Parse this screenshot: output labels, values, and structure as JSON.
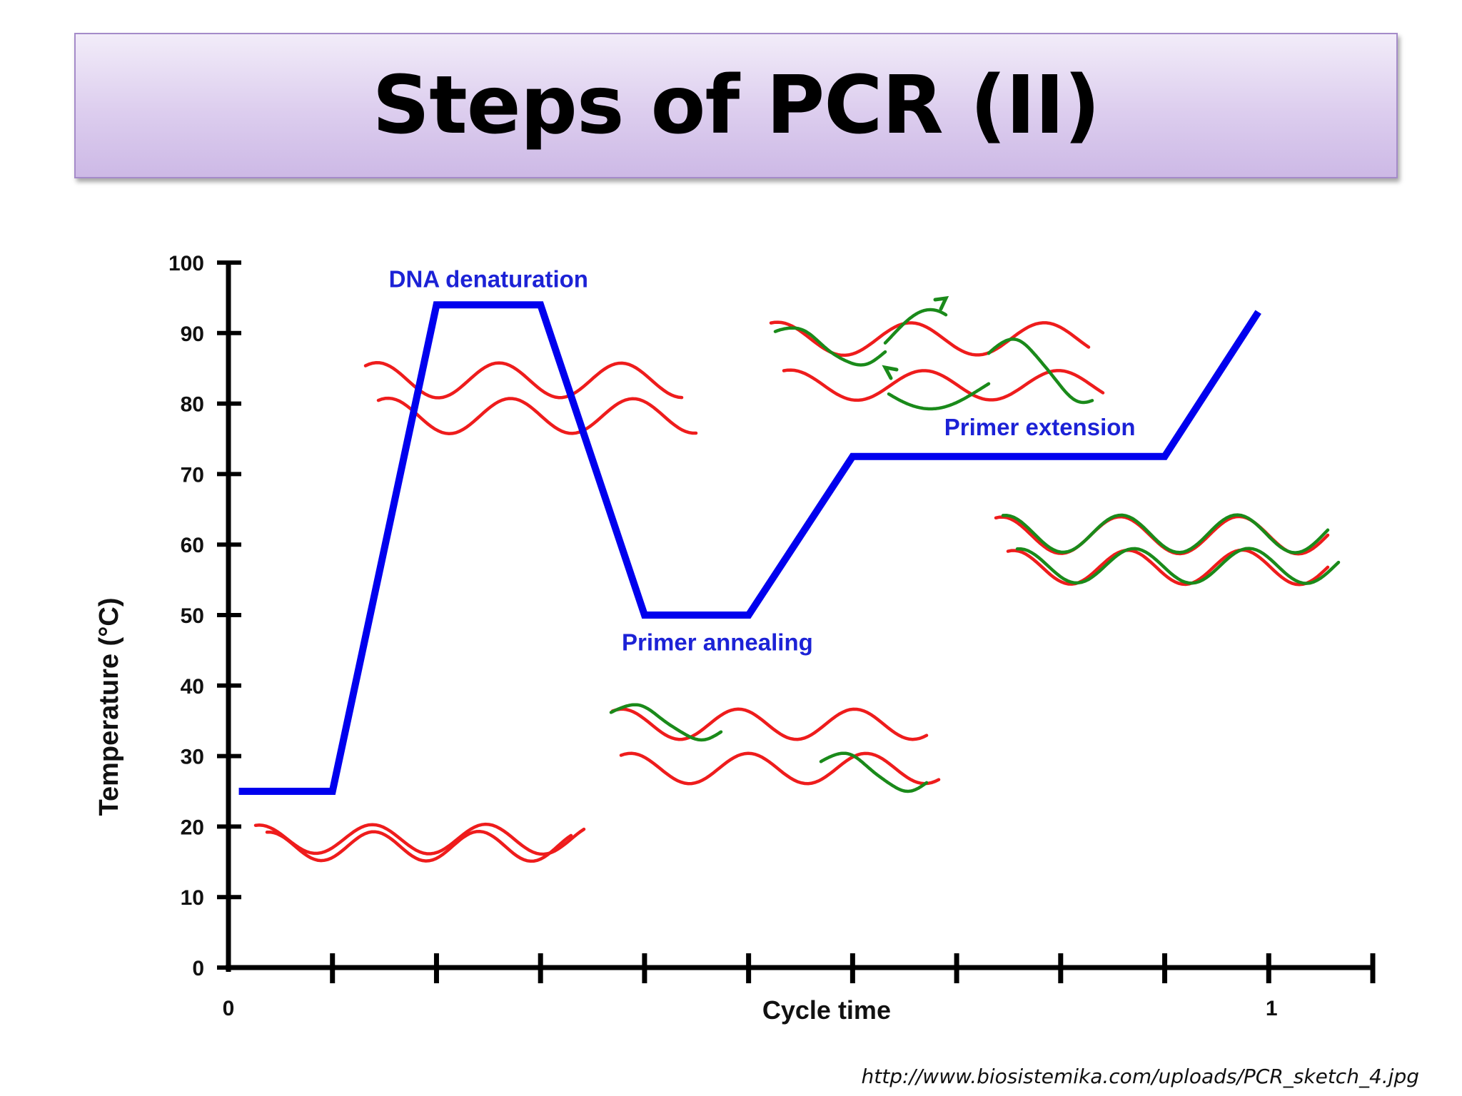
{
  "slide": {
    "title": "Steps of PCR (II)",
    "source": "http://www.biosistemika.com/uploads/PCR_sketch_4.jpg"
  },
  "colors": {
    "curve": "#0000ee",
    "phase_label": "#1c22d6",
    "dna_strand": "#ee1c1c",
    "primer": "#1a8a1a",
    "axis": "#000000"
  },
  "chart_data": {
    "type": "line",
    "ylabel": "Temperature (°C)",
    "xlabel": "Cycle time",
    "ylim": [
      0,
      100
    ],
    "y_ticks": [
      0,
      10,
      20,
      30,
      40,
      50,
      60,
      70,
      80,
      90,
      100
    ],
    "y_tick_labels": [
      "0",
      "10",
      "20",
      "30",
      "40",
      "50",
      "60",
      "70",
      "80",
      "90",
      "100"
    ],
    "xlim": [
      0,
      1.1
    ],
    "x_ticks": [
      0,
      0.1,
      0.2,
      0.3,
      0.4,
      0.5,
      0.6,
      0.7,
      0.8,
      0.9,
      1.0,
      1.1
    ],
    "x_tick_labels": [
      {
        "x": 0,
        "label": "0"
      },
      {
        "x": 1.0,
        "label": "1"
      }
    ],
    "grid": false,
    "series": [
      {
        "x": [
          0.01,
          0.1,
          0.2,
          0.3,
          0.4,
          0.5,
          0.6,
          0.9,
          0.99
        ],
        "y": [
          25,
          25,
          94,
          94,
          50,
          50,
          72.5,
          72.5,
          93
        ]
      }
    ],
    "annotations": [
      {
        "text": "DNA denaturation",
        "x": 0.25,
        "y": 96.5
      },
      {
        "text": "Primer annealing",
        "x": 0.47,
        "y": 45
      },
      {
        "text": "Primer extension",
        "x": 0.78,
        "y": 75.5
      }
    ]
  }
}
